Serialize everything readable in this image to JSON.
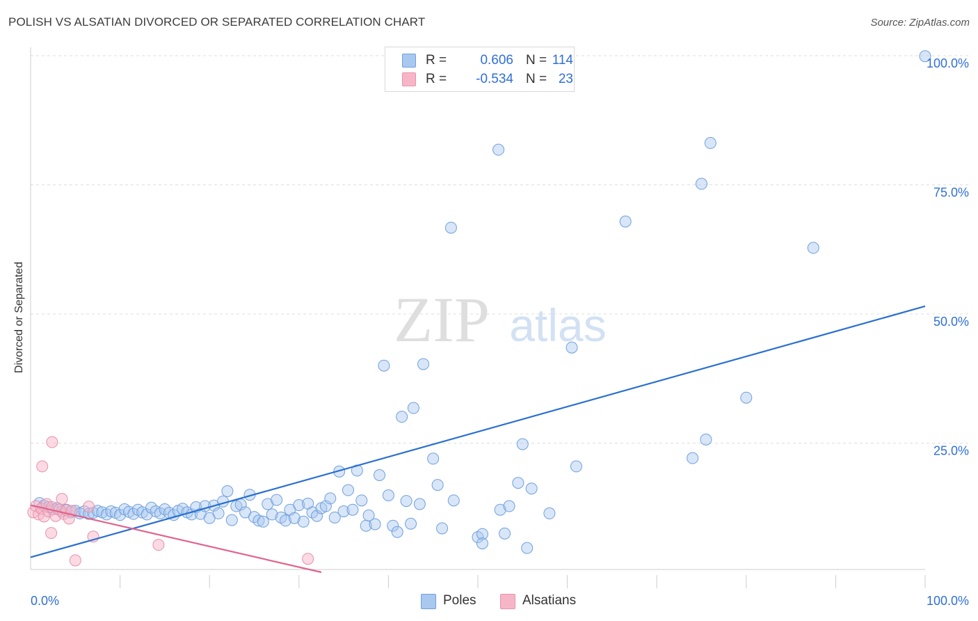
{
  "title": "POLISH VS ALSATIAN DIVORCED OR SEPARATED CORRELATION CHART",
  "source": "Source: ZipAtlas.com",
  "watermark": {
    "zip": "ZIP",
    "atlas": "atlas"
  },
  "legend": {
    "rows": [
      {
        "r_label": "R =",
        "r_value": "0.606",
        "n_label": "N =",
        "n_value": "114"
      },
      {
        "r_label": "R =",
        "r_value": "-0.534",
        "n_label": "N =",
        "n_value": "23"
      }
    ]
  },
  "bottom_legend": [
    "Poles",
    "Alsatians"
  ],
  "colors": {
    "poles_fill": "#a9c8f0",
    "poles_stroke": "#6f9fdc",
    "poles_line": "#2a6fd0",
    "alsatians_fill": "#f7b6c8",
    "alsatians_stroke": "#e890aa",
    "alsatians_line": "#e0648c",
    "tick_text": "#2f6fd6",
    "grid": "#dddddd"
  },
  "chart_data": {
    "type": "scatter",
    "title": "POLISH VS ALSATIAN DIVORCED OR SEPARATED CORRELATION CHART",
    "xlabel": "",
    "ylabel": "Divorced or Separated",
    "xlim": [
      0,
      100
    ],
    "ylim": [
      0,
      100
    ],
    "x_tick_labels": [
      "0.0%",
      "100.0%"
    ],
    "y_tick_labels": [
      "25.0%",
      "50.0%",
      "75.0%",
      "100.0%"
    ],
    "y_ticks": [
      25,
      50,
      75,
      100
    ],
    "grid": "horizontal dashed",
    "legend_placement": "top-center and bottom",
    "series": [
      {
        "name": "Poles",
        "R": 0.606,
        "N": 114,
        "trend": {
          "x": [
            0,
            100
          ],
          "y": [
            2.9,
            51.5
          ]
        },
        "points": [
          [
            1,
            13.4
          ],
          [
            1.5,
            12.9
          ],
          [
            2,
            12.6
          ],
          [
            2.5,
            12.2
          ],
          [
            3,
            12.4
          ],
          [
            3.5,
            11.8
          ],
          [
            4,
            12.1
          ],
          [
            4.5,
            11.6
          ],
          [
            5,
            11.9
          ],
          [
            5.5,
            11.4
          ],
          [
            6,
            11.8
          ],
          [
            6.5,
            11.3
          ],
          [
            7,
            11.5
          ],
          [
            7.5,
            11.9
          ],
          [
            8,
            11.6
          ],
          [
            8.5,
            11.2
          ],
          [
            9,
            11.8
          ],
          [
            9.5,
            11.5
          ],
          [
            10,
            11.1
          ],
          [
            10.5,
            12.2
          ],
          [
            11,
            11.7
          ],
          [
            11.5,
            11.3
          ],
          [
            12,
            12.1
          ],
          [
            12.5,
            11.6
          ],
          [
            13,
            11.2
          ],
          [
            13.5,
            12.5
          ],
          [
            14,
            11.8
          ],
          [
            14.5,
            11.4
          ],
          [
            15,
            12.2
          ],
          [
            15.5,
            11.5
          ],
          [
            16,
            11.1
          ],
          [
            16.5,
            11.9
          ],
          [
            17,
            12.3
          ],
          [
            17.5,
            11.6
          ],
          [
            18,
            11.2
          ],
          [
            18.5,
            12.6
          ],
          [
            19,
            11.3
          ],
          [
            19.5,
            12.8
          ],
          [
            20,
            10.5
          ],
          [
            20.5,
            12.9
          ],
          [
            21,
            11.4
          ],
          [
            21.5,
            13.7
          ],
          [
            22,
            15.7
          ],
          [
            22.5,
            10.1
          ],
          [
            23,
            12.8
          ],
          [
            23.5,
            13.1
          ],
          [
            24,
            11.6
          ],
          [
            24.5,
            15.0
          ],
          [
            25,
            10.7
          ],
          [
            25.5,
            10.0
          ],
          [
            26,
            9.8
          ],
          [
            26.5,
            13.2
          ],
          [
            27,
            11.2
          ],
          [
            27.5,
            14.0
          ],
          [
            28,
            10.6
          ],
          [
            28.5,
            10.0
          ],
          [
            29,
            12.1
          ],
          [
            29.5,
            10.5
          ],
          [
            30,
            13.0
          ],
          [
            30.5,
            9.8
          ],
          [
            31,
            13.3
          ],
          [
            31.5,
            11.6
          ],
          [
            32,
            10.9
          ],
          [
            32.5,
            12.4
          ],
          [
            33,
            12.8
          ],
          [
            33.5,
            14.3
          ],
          [
            34,
            10.6
          ],
          [
            34.5,
            19.5
          ],
          [
            35,
            11.8
          ],
          [
            35.5,
            15.9
          ],
          [
            36,
            12.1
          ],
          [
            36.5,
            19.7
          ],
          [
            37,
            13.9
          ],
          [
            37.5,
            9.0
          ],
          [
            37.8,
            11.0
          ],
          [
            38.5,
            9.3
          ],
          [
            39,
            18.8
          ],
          [
            39.5,
            40.0
          ],
          [
            40,
            14.9
          ],
          [
            40.5,
            9.0
          ],
          [
            41,
            7.8
          ],
          [
            41.5,
            30.1
          ],
          [
            42,
            13.8
          ],
          [
            42.5,
            9.4
          ],
          [
            42.8,
            31.8
          ],
          [
            43.5,
            13.2
          ],
          [
            43.9,
            40.3
          ],
          [
            45,
            22.0
          ],
          [
            45.5,
            16.9
          ],
          [
            46,
            8.5
          ],
          [
            47,
            66.7
          ],
          [
            47.3,
            13.9
          ],
          [
            50,
            6.8
          ],
          [
            50.5,
            7.4
          ],
          [
            50.5,
            5.6
          ],
          [
            52.5,
            12.1
          ],
          [
            52.3,
            81.8
          ],
          [
            53,
            7.5
          ],
          [
            53.5,
            12.8
          ],
          [
            54.5,
            17.3
          ],
          [
            55,
            24.8
          ],
          [
            55.5,
            4.7
          ],
          [
            56,
            16.2
          ],
          [
            58,
            11.4
          ],
          [
            61,
            20.5
          ],
          [
            60.5,
            43.5
          ],
          [
            66.5,
            67.9
          ],
          [
            74,
            22.1
          ],
          [
            75,
            75.2
          ],
          [
            75.5,
            25.7
          ],
          [
            76,
            83.1
          ],
          [
            80,
            33.8
          ],
          [
            87.5,
            62.8
          ],
          [
            100,
            99.9
          ]
        ]
      },
      {
        "name": "Alsatians",
        "R": -0.534,
        "N": 23,
        "trend": {
          "x": [
            0,
            32.5
          ],
          "y": [
            13.0,
            0.0
          ]
        },
        "points": [
          [
            0.3,
            11.6
          ],
          [
            0.6,
            12.8
          ],
          [
            0.9,
            11.2
          ],
          [
            1.2,
            12.3
          ],
          [
            1.5,
            10.8
          ],
          [
            1.8,
            13.2
          ],
          [
            2.0,
            11.8
          ],
          [
            2.4,
            12.6
          ],
          [
            1.3,
            20.5
          ],
          [
            2.4,
            25.2
          ],
          [
            2.3,
            7.6
          ],
          [
            2.8,
            10.9
          ],
          [
            3.2,
            12.1
          ],
          [
            3.5,
            14.2
          ],
          [
            3.7,
            11.3
          ],
          [
            4.0,
            12.0
          ],
          [
            4.3,
            10.4
          ],
          [
            4.6,
            11.9
          ],
          [
            6.5,
            12.7
          ],
          [
            5.0,
            2.3
          ],
          [
            7.0,
            6.9
          ],
          [
            14.3,
            5.3
          ],
          [
            31.0,
            2.6
          ]
        ]
      }
    ]
  }
}
